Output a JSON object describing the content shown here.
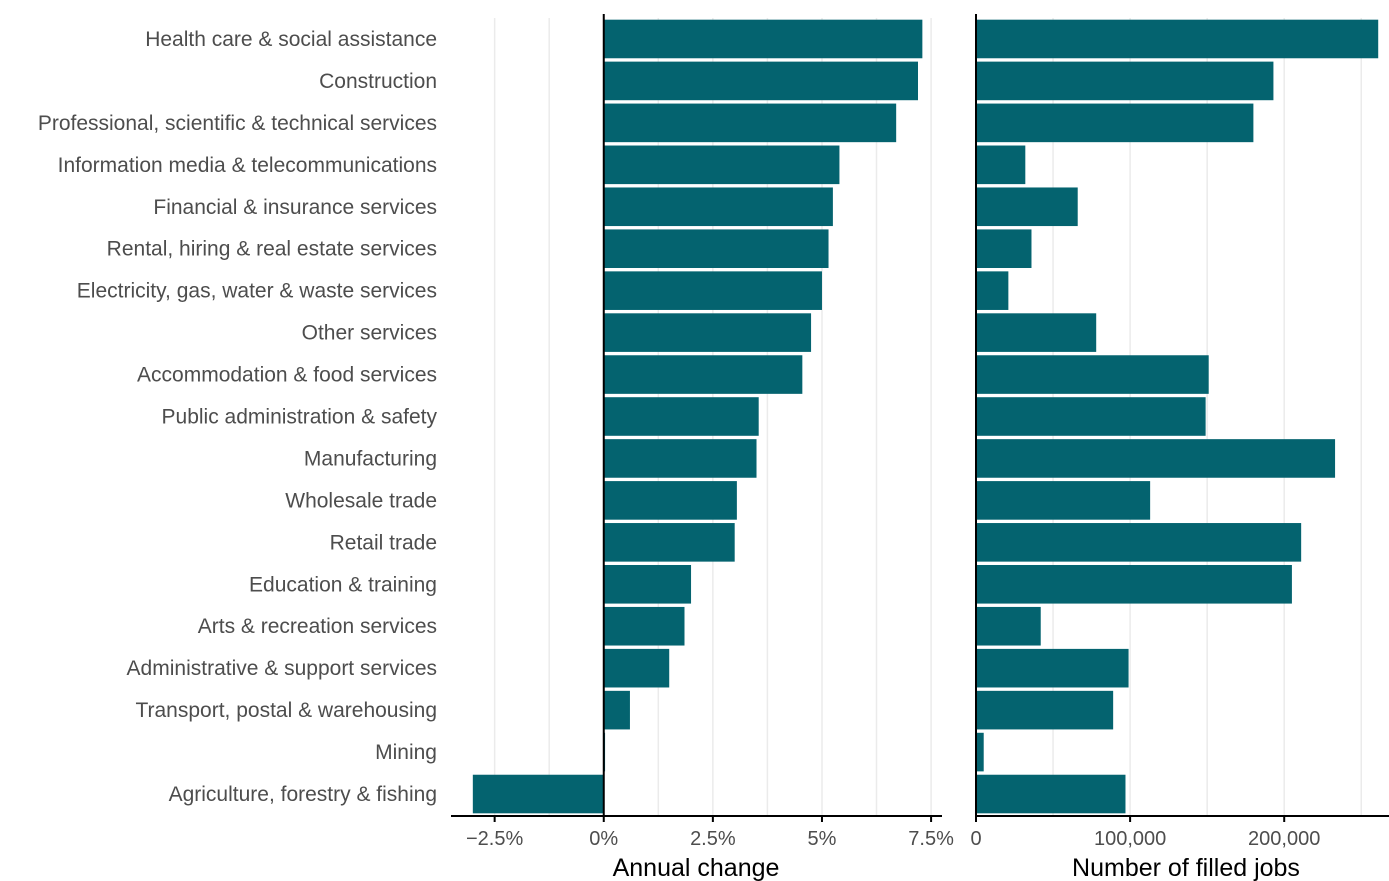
{
  "chart_data": [
    {
      "type": "bar",
      "orientation": "horizontal",
      "categories": [
        "Health care & social assistance",
        "Construction",
        "Professional, scientific & technical services",
        "Information media & telecommunications",
        "Financial & insurance services",
        "Rental, hiring & real estate services",
        "Electricity, gas, water & waste services",
        "Other services",
        "Accommodation & food services",
        "Public administration & safety",
        "Manufacturing",
        "Wholesale trade",
        "Retail trade",
        "Education & training",
        "Arts & recreation services",
        "Administrative & support services",
        "Transport, postal & warehousing",
        "Mining",
        "Agriculture, forestry & fishing"
      ],
      "values": [
        7.3,
        7.2,
        6.7,
        5.4,
        5.25,
        5.15,
        5.0,
        4.75,
        4.55,
        3.55,
        3.5,
        3.05,
        3.0,
        2.0,
        1.85,
        1.5,
        0.6,
        0.03,
        -3.0
      ],
      "xlabel": "Annual change",
      "xlim": [
        -3.5,
        7.75
      ],
      "xticks": [
        -2.5,
        0,
        2.5,
        5,
        7.5
      ],
      "xtick_labels": [
        "−2.5%",
        "0%",
        "2.5%",
        "5%",
        "7.5%"
      ],
      "grid": true,
      "bar_color": "#04636f"
    },
    {
      "type": "bar",
      "orientation": "horizontal",
      "values": [
        261000,
        193000,
        180000,
        32000,
        66000,
        36000,
        21000,
        78000,
        151000,
        149000,
        233000,
        113000,
        211000,
        205000,
        42000,
        99000,
        89000,
        5000,
        97000
      ],
      "xlabel": "Number of filled jobs",
      "xlim": [
        0,
        268000
      ],
      "xticks": [
        0,
        100000,
        200000
      ],
      "xtick_labels": [
        "0",
        "100,000",
        "200,000"
      ],
      "grid": true,
      "bar_color": "#04636f"
    }
  ]
}
